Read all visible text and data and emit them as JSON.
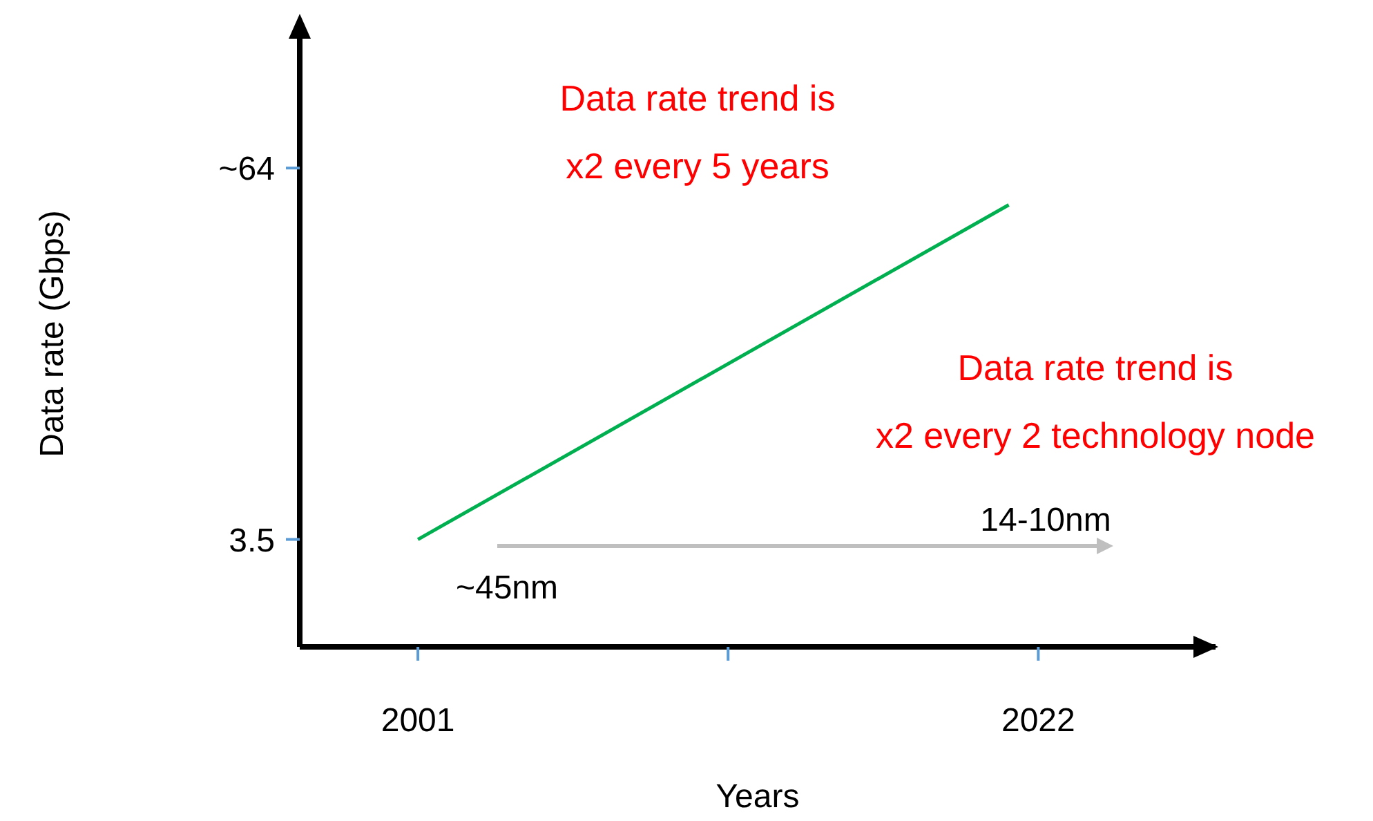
{
  "chart_data": {
    "type": "line",
    "xlabel": "Years",
    "ylabel": "Data rate (Gbps)",
    "x": [
      2001,
      2021
    ],
    "series": [
      {
        "color": "#00b050",
        "values": [
          3.5,
          58
        ]
      }
    ],
    "xlim": [
      1997,
      2028
    ],
    "xticks": [
      2001,
      {
        "value": 2011.5,
        "label": null
      },
      2022
    ],
    "ylim": [
      -14,
      88
    ],
    "yticks": [
      3.5,
      {
        "value": 64,
        "label": "~64"
      }
    ],
    "grid": false,
    "legend": false,
    "marker": "none",
    "line_style": "solid",
    "annotations": [
      "Data rate trend is\nx2 every 5 years",
      "Data rate trend is\nx2 every 2 technology node",
      "~45nm",
      "14-10nm"
    ]
  }
}
